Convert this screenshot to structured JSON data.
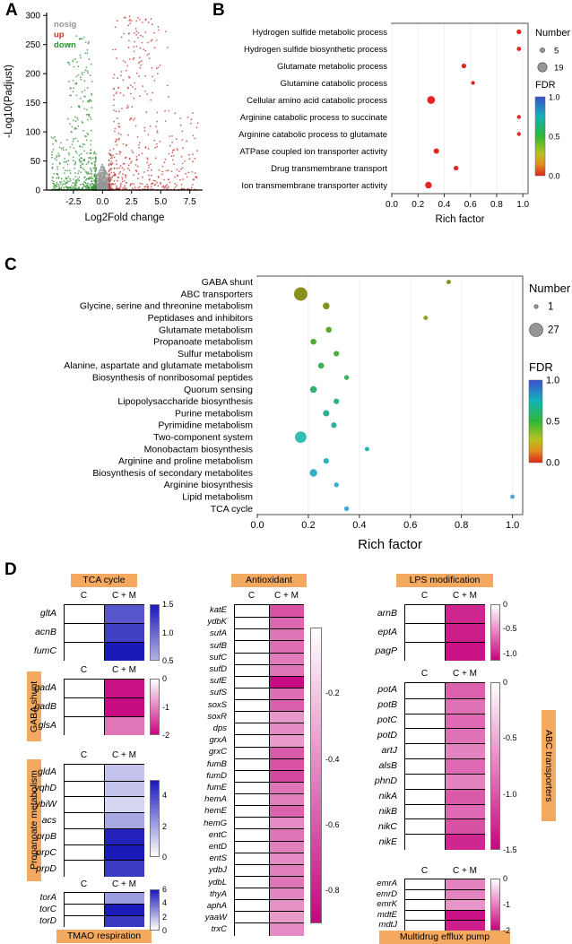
{
  "figure": {
    "panel_labels": {
      "a": "A",
      "b": "B",
      "c": "C",
      "d": "D"
    }
  },
  "colors": {
    "accent_chip": "#f3a960",
    "volcano_nosig": "#969696",
    "volcano_up": "#bd3530",
    "volcano_down": "#2f8f33",
    "dot_red": "#e62520",
    "heat_blue": "#1a1ab8",
    "heat_pink": "#c6067e"
  },
  "chart_data": [
    {
      "id": "volcano",
      "type": "scatter",
      "panel": "A",
      "xlabel": "Log2Fold change",
      "ylabel": "-Log10(Padjust)",
      "xticks": [
        "-2.5",
        "0.0",
        "2.5",
        "5.0",
        "7.5"
      ],
      "yticks": [
        "0",
        "50",
        "100",
        "150",
        "200",
        "250",
        "300"
      ],
      "xlim": [
        -4.8,
        8.6
      ],
      "ylim": [
        0,
        305
      ],
      "legend": [
        {
          "label": "nosig",
          "color": "#969696"
        },
        {
          "label": "up",
          "color": "#bd3530"
        },
        {
          "label": "down",
          "color": "#2f8f33"
        }
      ],
      "groups": [
        {
          "name": "nosig",
          "color": "#969696",
          "n": 750,
          "x_min": -0.95,
          "x_max": 0.95,
          "y_max": 45
        },
        {
          "name": "up",
          "color": "#bd3530",
          "n": 520,
          "x_min": 0.55,
          "x_max": 8.2,
          "y_max": 300
        },
        {
          "name": "down",
          "color": "#2f8f33",
          "n": 520,
          "x_min": -4.4,
          "x_max": -0.55,
          "y_max": 265
        }
      ]
    },
    {
      "id": "go_dotplot",
      "type": "dot",
      "panel": "B",
      "xlabel": "Rich factor",
      "xticks": [
        "0.0",
        "0.2",
        "0.4",
        "0.6",
        "0.8",
        "1.0"
      ],
      "xlim": [
        0,
        1.04
      ],
      "size_legend": {
        "title": "Number",
        "values": [
          5,
          19
        ]
      },
      "fdr_legend": {
        "title": "FDR",
        "ticks": [
          "1.0",
          "0.5",
          "0.0"
        ]
      },
      "rows": [
        {
          "label": "Hydrogen sulfide metabolic process",
          "rich_factor": 0.97,
          "number": 7,
          "fdr": 0.0,
          "color": "#e62520"
        },
        {
          "label": "Hydrogen sulfide biosynthetic process",
          "rich_factor": 0.97,
          "number": 6,
          "fdr": 0.0,
          "color": "#e62520"
        },
        {
          "label": "Glutamate metabolic process",
          "rich_factor": 0.55,
          "number": 7,
          "fdr": 0.0,
          "color": "#e62520"
        },
        {
          "label": "Glutamine catabolic process",
          "rich_factor": 0.62,
          "number": 5,
          "fdr": 0.0,
          "color": "#e62520"
        },
        {
          "label": "Cellular amino acid catabolic process",
          "rich_factor": 0.3,
          "number": 15,
          "fdr": 0.0,
          "color": "#e62520"
        },
        {
          "label": "Arginine catabolic process to succinate",
          "rich_factor": 0.97,
          "number": 5,
          "fdr": 0.0,
          "color": "#e62520"
        },
        {
          "label": "Arginine catabolic process to glutamate",
          "rich_factor": 0.97,
          "number": 5,
          "fdr": 0.0,
          "color": "#e62520"
        },
        {
          "label": "ATPase coupled ion transporter activity",
          "rich_factor": 0.34,
          "number": 9,
          "fdr": 0.0,
          "color": "#e62520"
        },
        {
          "label": "Drug transmembrane transport",
          "rich_factor": 0.49,
          "number": 7,
          "fdr": 0.0,
          "color": "#e62520"
        },
        {
          "label": "Ion transmembrane transporter activity",
          "rich_factor": 0.28,
          "number": 12,
          "fdr": 0.0,
          "color": "#e62520"
        }
      ]
    },
    {
      "id": "kegg_dotplot",
      "type": "dot",
      "panel": "C",
      "xlabel": "Rich factor",
      "xticks": [
        "0.0",
        "0.2",
        "0.4",
        "0.6",
        "0.8",
        "1.0"
      ],
      "xlim": [
        0,
        1.04
      ],
      "size_legend": {
        "title": "Number",
        "values": [
          1,
          27
        ]
      },
      "fdr_legend": {
        "title": "FDR",
        "ticks": [
          "1.0",
          "0.5",
          "0.0"
        ]
      },
      "rows": [
        {
          "label": "GABA shunt",
          "rich_factor": 0.75,
          "number": 4,
          "fdr": 0.45,
          "color": "#8a8f1e"
        },
        {
          "label": "ABC transporters",
          "rich_factor": 0.17,
          "number": 27,
          "fdr": 0.45,
          "color": "#8a8f1e"
        },
        {
          "label": "Glycine, serine and threonine metabolism",
          "rich_factor": 0.27,
          "number": 10,
          "fdr": 0.47,
          "color": "#82921f"
        },
        {
          "label": "Peptidases and inhibitors",
          "rich_factor": 0.66,
          "number": 4,
          "fdr": 0.48,
          "color": "#98a023"
        },
        {
          "label": "Glutamate metabolism",
          "rich_factor": 0.28,
          "number": 8,
          "fdr": 0.5,
          "color": "#61a72c"
        },
        {
          "label": "Propanoate metabolism",
          "rich_factor": 0.22,
          "number": 8,
          "fdr": 0.52,
          "color": "#52ab38"
        },
        {
          "label": "Sulfur metabolism",
          "rich_factor": 0.31,
          "number": 7,
          "fdr": 0.54,
          "color": "#49ad45"
        },
        {
          "label": "Alanine, aspartate and glutamate metabolism",
          "rich_factor": 0.25,
          "number": 8,
          "fdr": 0.56,
          "color": "#41ae54"
        },
        {
          "label": "Biosynthesis of nonribosomal peptides",
          "rich_factor": 0.35,
          "number": 5,
          "fdr": 0.58,
          "color": "#3baf62"
        },
        {
          "label": "Quorum sensing",
          "rich_factor": 0.22,
          "number": 10,
          "fdr": 0.6,
          "color": "#36b072"
        },
        {
          "label": "Lipopolysaccharide biosynthesis",
          "rich_factor": 0.31,
          "number": 7,
          "fdr": 0.62,
          "color": "#32b080"
        },
        {
          "label": "Purine metabolism",
          "rich_factor": 0.27,
          "number": 9,
          "fdr": 0.64,
          "color": "#2eb18e"
        },
        {
          "label": "Pyrimidine metabolism",
          "rich_factor": 0.3,
          "number": 7,
          "fdr": 0.66,
          "color": "#2bb29b"
        },
        {
          "label": "Two-component system",
          "rich_factor": 0.17,
          "number": 22,
          "fdr": 0.68,
          "color": "#35bcb3"
        },
        {
          "label": "Monobactam biosynthesis",
          "rich_factor": 0.43,
          "number": 4,
          "fdr": 0.7,
          "color": "#2ab3ab"
        },
        {
          "label": "Arginine and proline metabolism",
          "rich_factor": 0.27,
          "number": 7,
          "fdr": 0.72,
          "color": "#2bb3bc"
        },
        {
          "label": "Biosynthesis of secondary metabolites",
          "rich_factor": 0.22,
          "number": 12,
          "fdr": 0.74,
          "color": "#33b1c7"
        },
        {
          "label": "Arginine biosynthesis",
          "rich_factor": 0.31,
          "number": 5,
          "fdr": 0.78,
          "color": "#3fadd3"
        },
        {
          "label": "Lipid metabolism",
          "rich_factor": 1.0,
          "number": 4,
          "fdr": 0.82,
          "color": "#54a7de"
        },
        {
          "label": "TCA cycle",
          "rich_factor": 0.35,
          "number": 5,
          "fdr": 0.8,
          "color": "#4aa3da"
        }
      ]
    },
    {
      "id": "heatmaps",
      "type": "heatmap",
      "panel": "D",
      "columns": [
        "C",
        "C + M"
      ],
      "blocks": [
        {
          "title": "TCA cycle",
          "colormap": "blue",
          "genes": [
            "gltA",
            "acnB",
            "fumC"
          ],
          "c": [
            0,
            0,
            0
          ],
          "cm": [
            1.1,
            1.25,
            1.5
          ],
          "scale": {
            "bar": [
              1.5,
              0.5
            ],
            "domain": [
              0,
              1.5
            ],
            "ticks": [
              "1.5",
              "1.0",
              "0.5"
            ]
          }
        },
        {
          "title": "GABA shunt",
          "colormap": "pink",
          "genes": [
            "gadA",
            "gadB",
            "glsA"
          ],
          "c": [
            0,
            0,
            0
          ],
          "cm": [
            -1.9,
            -1.95,
            -1.1
          ],
          "scale": {
            "bar": [
              0,
              -2
            ],
            "domain": [
              0,
              -2
            ],
            "ticks": [
              "0",
              "-1",
              "-2"
            ]
          }
        },
        {
          "title": "Propanoate metabolism",
          "colormap": "blue",
          "genes": [
            "gldA",
            "yqhD",
            "ybiW",
            "acs",
            "prpB",
            "prpC",
            "prpD"
          ],
          "c": [
            0,
            0,
            0,
            0,
            0,
            0,
            0
          ],
          "cm": [
            1.3,
            1.3,
            0.9,
            1.9,
            4.8,
            5.0,
            4.3
          ],
          "scale": {
            "bar": [
              5,
              0
            ],
            "domain": [
              0,
              5
            ],
            "ticks": [
              "4",
              "2",
              "0"
            ]
          }
        },
        {
          "title": "TMAO respiration",
          "colormap": "blue",
          "genes": [
            "torA",
            "torC",
            "torD"
          ],
          "c": [
            0,
            0,
            0
          ],
          "cm": [
            2.6,
            6.0,
            5.2
          ],
          "scale": {
            "bar": [
              6,
              0
            ],
            "domain": [
              0,
              6
            ],
            "ticks": [
              "6",
              "4",
              "2",
              "0"
            ]
          }
        },
        {
          "title": "Antioxidant",
          "colormap": "pink",
          "genes": [
            "katE",
            "ydbK",
            "sufA",
            "sufB",
            "sufC",
            "sufD",
            "sufE",
            "sufS",
            "soxS",
            "soxR",
            "dps",
            "grxA",
            "grxC",
            "fumB",
            "fumD",
            "fumE",
            "hemA",
            "hemE",
            "hemG",
            "entC",
            "entD",
            "entS",
            "ydbJ",
            "ydbL",
            "thyA",
            "aphA",
            "yaaW",
            "trxC"
          ],
          "c": [
            0,
            0,
            0,
            0,
            0,
            0,
            0,
            0,
            0,
            0,
            0,
            0,
            0,
            0,
            0,
            0,
            0,
            0,
            0,
            0,
            0,
            0,
            0,
            0,
            0,
            0,
            0,
            0
          ],
          "cm": [
            -0.62,
            -0.55,
            -0.5,
            -0.52,
            -0.48,
            -0.5,
            -0.88,
            -0.52,
            -0.58,
            -0.38,
            -0.42,
            -0.36,
            -0.6,
            -0.62,
            -0.66,
            -0.5,
            -0.46,
            -0.56,
            -0.42,
            -0.5,
            -0.46,
            -0.42,
            -0.46,
            -0.5,
            -0.44,
            -0.4,
            -0.36,
            -0.42
          ],
          "scale": {
            "bar": [
              0,
              -0.9
            ],
            "domain": [
              0,
              -0.9
            ],
            "ticks": [
              "-0.2",
              "-0.4",
              "-0.6",
              "-0.8"
            ]
          }
        },
        {
          "title": "LPS modification",
          "colormap": "pink",
          "genes": [
            "arnB",
            "eptA",
            "pagP"
          ],
          "c": [
            0,
            0,
            0
          ],
          "cm": [
            -1.0,
            -1.05,
            -1.1
          ],
          "scale": {
            "bar": [
              0,
              -1.15
            ],
            "domain": [
              0,
              -1.15
            ],
            "ticks": [
              "0",
              "-0.5",
              "-1.0"
            ]
          }
        },
        {
          "title": "ABC transporters",
          "colormap": "pink",
          "genes": [
            "potA",
            "potB",
            "potC",
            "potD",
            "artJ",
            "alsB",
            "phnD",
            "nikA",
            "nikB",
            "nikC",
            "nikE"
          ],
          "c": [
            0,
            0,
            0,
            0,
            0,
            0,
            0,
            0,
            0,
            0,
            0
          ],
          "cm": [
            -0.95,
            -0.85,
            -0.9,
            -0.85,
            -0.75,
            -0.9,
            -0.75,
            -1.0,
            -0.9,
            -1.05,
            -1.3
          ],
          "scale": {
            "bar": [
              0,
              -1.5
            ],
            "domain": [
              0,
              -1.5
            ],
            "ticks": [
              "0",
              "-0.5",
              "-1.0",
              "-1.5"
            ]
          }
        },
        {
          "title": "Multidrug efflux pump",
          "colormap": "pink",
          "genes": [
            "emrA",
            "emrD",
            "emrK",
            "mdtE",
            "mdtJ"
          ],
          "c": [
            0,
            0,
            0,
            0,
            0
          ],
          "cm": [
            -1.0,
            -1.0,
            -0.85,
            -1.9,
            -1.8
          ],
          "scale": {
            "bar": [
              0,
              -2
            ],
            "domain": [
              0,
              -2
            ],
            "ticks": [
              "0",
              "-1",
              "-2"
            ]
          }
        }
      ]
    }
  ]
}
